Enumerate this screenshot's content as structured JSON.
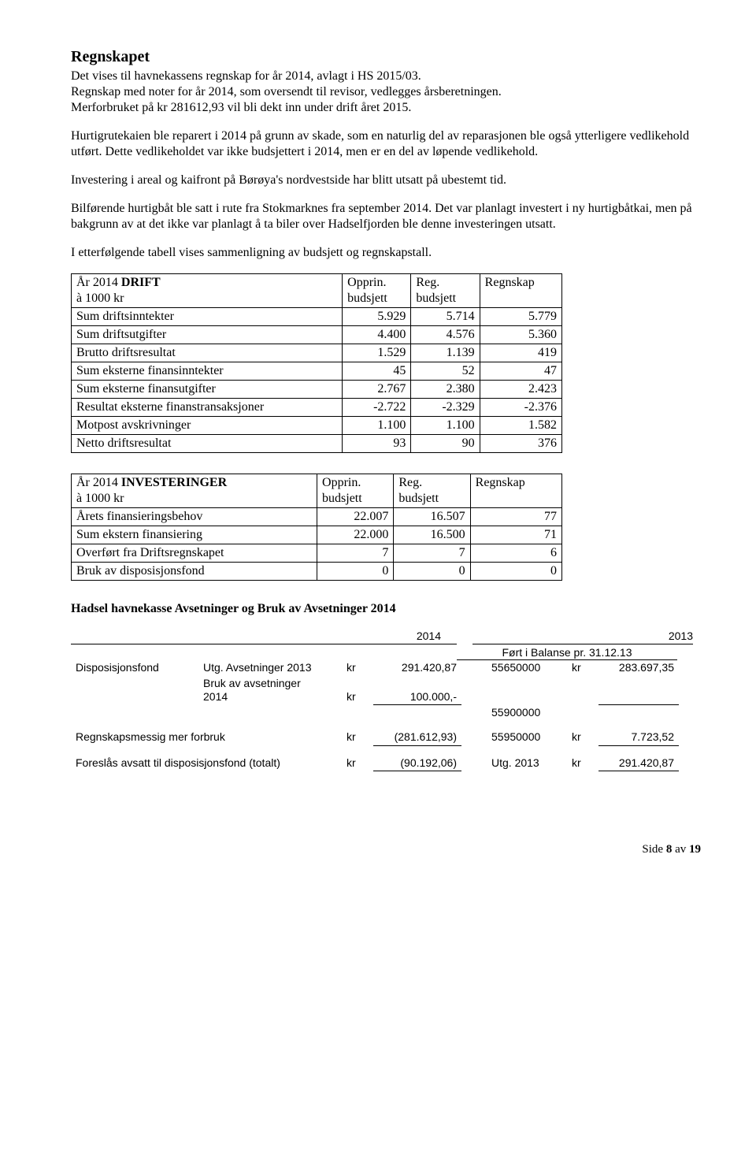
{
  "title": "Regnskapet",
  "para1a": "Det vises til havnekassens regnskap for år 2014, avlagt i HS 2015/03.",
  "para1b": "Regnskap med noter for år 2014, som oversendt til revisor, vedlegges årsberetningen.",
  "para1c": "Merforbruket på kr 281612,93 vil bli dekt inn under drift året 2015.",
  "para2": "Hurtigrutekaien ble reparert i 2014 på grunn av skade, som en naturlig del av reparasjonen ble også ytterligere vedlikehold utført. Dette vedlikeholdet var ikke budsjettert i 2014, men er en del av løpende vedlikehold.",
  "para3": "Investering i areal og kaifront på Børøya's nordvestside har blitt utsatt på ubestemt tid.",
  "para4": "Bilførende hurtigbåt ble satt i rute fra Stokmarknes fra september 2014. Det var planlagt investert i ny hurtigbåtkai, men på bakgrunn av at det ikke var planlagt å ta biler over Hadselfjorden ble denne investeringen utsatt.",
  "para5": "I etterfølgende tabell vises sammenligning av budsjett og regnskapstall.",
  "drift": {
    "header_main_pre": "År 2014 ",
    "header_main_bold": "DRIFT",
    "header_sub": "à 1000 kr",
    "col1a": "Opprin.",
    "col1b": "budsjett",
    "col2a": "Reg.",
    "col2b": "budsjett",
    "col3": "Regnskap",
    "rows": [
      {
        "label": "Sum driftsinntekter",
        "c1": "5.929",
        "c2": "5.714",
        "c3": "5.779"
      },
      {
        "label": "Sum driftsutgifter",
        "c1": "4.400",
        "c2": "4.576",
        "c3": "5.360"
      },
      {
        "label": "Brutto driftsresultat",
        "c1": "1.529",
        "c2": "1.139",
        "c3": "419"
      },
      {
        "label": "Sum eksterne finansinntekter",
        "c1": "45",
        "c2": "52",
        "c3": "47"
      },
      {
        "label": "Sum eksterne finansutgifter",
        "c1": "2.767",
        "c2": "2.380",
        "c3": "2.423"
      },
      {
        "label": "Resultat eksterne finanstransaksjoner",
        "c1": "-2.722",
        "c2": "-2.329",
        "c3": "-2.376"
      },
      {
        "label": "Motpost avskrivninger",
        "c1": "1.100",
        "c2": "1.100",
        "c3": "1.582"
      },
      {
        "label": "Netto driftsresultat",
        "c1": "93",
        "c2": "90",
        "c3": "376"
      }
    ]
  },
  "invest": {
    "header_main_pre": "År 2014  ",
    "header_main_bold": "INVESTERINGER",
    "header_sub": "à 1000 kr",
    "col1a": "Opprin.",
    "col1b": "budsjett",
    "col2a": "Reg.",
    "col2b": "budsjett",
    "col3": "Regnskap",
    "rows": [
      {
        "label": "Årets finansieringsbehov",
        "c1": "22.007",
        "c2": "16.507",
        "c3": "77"
      },
      {
        "label": "Sum ekstern finansiering",
        "c1": "22.000",
        "c2": "16.500",
        "c3": "71"
      },
      {
        "label": "Overført fra Driftsregnskapet",
        "c1": "7",
        "c2": "7",
        "c3": "6"
      },
      {
        "label": "Bruk av disposisjonsfond",
        "c1": "0",
        "c2": "0",
        "c3": "0"
      }
    ]
  },
  "avset": {
    "title": "Hadsel havnekasse Avsetninger og Bruk av Avsetninger 2014",
    "year_l": "2014",
    "year_r": "2013",
    "bal_label": "Ført i Balanse pr. 31.12.13",
    "r1": {
      "c1": "Disposisjonsfond",
      "c2": "Utg. Avsetninger 2013",
      "c3": "kr",
      "c4": "291.420,87",
      "c5": "55650000",
      "c6": "kr",
      "c7": "283.697,35"
    },
    "r2": {
      "c2a": "Bruk av avsetninger",
      "c2b": "2014",
      "c3": "kr",
      "c4": "100.000,-"
    },
    "r3": {
      "c5": "55900000"
    },
    "r4": {
      "c1": "Regnskapsmessig mer forbruk",
      "c3": "kr",
      "c4": "(281.612,93)",
      "c5": "55950000",
      "c6": "kr",
      "c7": "7.723,52"
    },
    "r5": {
      "c1": "Foreslås avsatt til disposisjonsfond (totalt)",
      "c3": "kr",
      "c4": "(90.192,06)",
      "c5": "Utg. 2013",
      "c6": "kr",
      "c7": "291.420,87"
    }
  },
  "footer": {
    "pre": "Side ",
    "num": "8",
    "mid": " av ",
    "total": "19"
  }
}
